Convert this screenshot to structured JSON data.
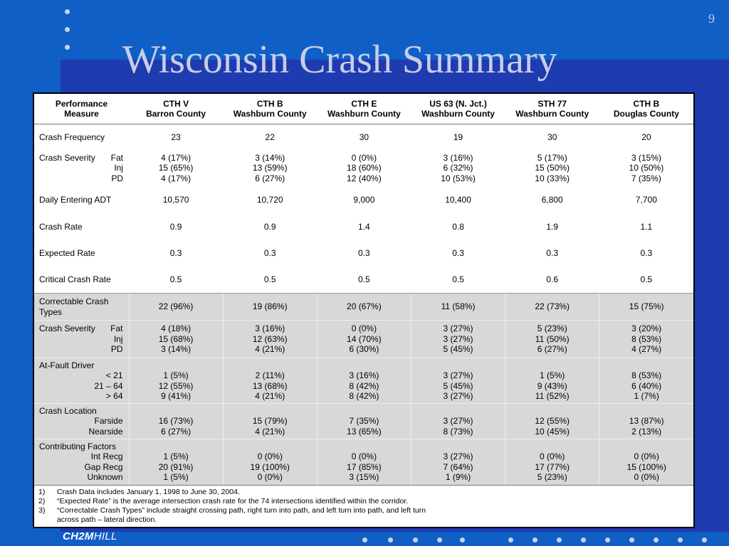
{
  "page_number": "9",
  "title": "Wisconsin Crash Summary",
  "logo": {
    "bold": "CH2M",
    "regular": "HILL"
  },
  "header": {
    "measure": [
      "Performance",
      "Measure"
    ],
    "columns": [
      [
        "CTH V",
        "Barron County"
      ],
      [
        "CTH B",
        "Washburn County"
      ],
      [
        "CTH E",
        "Washburn County"
      ],
      [
        "US 63 (N. Jct.)",
        "Washburn County"
      ],
      [
        "STH 77",
        "Washburn County"
      ],
      [
        "CTH B",
        "Douglas County"
      ]
    ]
  },
  "rows": {
    "crash_frequency": {
      "label": "Crash Frequency",
      "values": [
        "23",
        "22",
        "30",
        "19",
        "30",
        "20"
      ]
    },
    "crash_severity": {
      "label": "Crash Severity",
      "sub": [
        "Fat",
        "Inj",
        "PD"
      ],
      "fat": [
        "4 (17%)",
        "3 (14%)",
        "0 (0%)",
        "3 (16%)",
        "5 (17%)",
        "3 (15%)"
      ],
      "inj": [
        "15 (65%)",
        "13 (59%)",
        "18 (60%)",
        "6 (32%)",
        "15 (50%)",
        "10 (50%)"
      ],
      "pd": [
        "4 (17%)",
        "6 (27%)",
        "12 (40%)",
        "10 (53%)",
        "10 (33%)",
        "7 (35%)"
      ]
    },
    "daily_adt": {
      "label": "Daily Entering ADT",
      "values": [
        "10,570",
        "10,720",
        "9,000",
        "10,400",
        "6,800",
        "7,700"
      ]
    },
    "crash_rate": {
      "label": "Crash Rate",
      "values": [
        "0.9",
        "0.9",
        "1.4",
        "0.8",
        "1.9",
        "1.1"
      ]
    },
    "expected_rate": {
      "label": "Expected Rate",
      "values": [
        "0.3",
        "0.3",
        "0.3",
        "0.3",
        "0.3",
        "0.3"
      ]
    },
    "critical_rate": {
      "label": "Critical Crash Rate",
      "values": [
        "0.5",
        "0.5",
        "0.5",
        "0.5",
        "0.6",
        "0.5"
      ]
    },
    "correctable": {
      "label": "Correctable Crash Types",
      "values": [
        "22 (96%)",
        "19 (86%)",
        "20 (67%)",
        "11 (58%)",
        "22 (73%)",
        "15 (75%)"
      ]
    },
    "correctable_severity": {
      "label": "Crash Severity",
      "sub": [
        "Fat",
        "Inj",
        "PD"
      ],
      "fat": [
        "4 (18%)",
        "3 (16%)",
        "0 (0%)",
        "3 (27%)",
        "5 (23%)",
        "3 (20%)"
      ],
      "inj": [
        "15 (68%)",
        "12 (63%)",
        "14 (70%)",
        "3 (27%)",
        "11 (50%)",
        "8 (53%)"
      ],
      "pd": [
        "3 (14%)",
        "4 (21%)",
        "6 (30%)",
        "5 (45%)",
        "6 (27%)",
        "4 (27%)"
      ]
    },
    "at_fault": {
      "label": "At-Fault Driver",
      "sub": [
        "< 21",
        "21 – 64",
        "> 64"
      ],
      "a": [
        "1 (5%)",
        "2 (11%)",
        "3 (16%)",
        "3 (27%)",
        "1 (5%)",
        "8 (53%)"
      ],
      "b": [
        "12 (55%)",
        "13 (68%)",
        "8 (42%)",
        "5 (45%)",
        "9 (43%)",
        "6 (40%)"
      ],
      "c": [
        "9 (41%)",
        "4 (21%)",
        "8 (42%)",
        "3 (27%)",
        "11 (52%)",
        "1 (7%)"
      ]
    },
    "location": {
      "label": "Crash Location",
      "sub": [
        "Farside",
        "Nearside"
      ],
      "a": [
        "16 (73%)",
        "15 (79%)",
        "7 (35%)",
        "3 (27%)",
        "12 (55%)",
        "13 (87%)"
      ],
      "b": [
        "6 (27%)",
        "4 (21%)",
        "13 (65%)",
        "8 (73%)",
        "10 (45%)",
        "2 (13%)"
      ]
    },
    "factors": {
      "label": "Contributing Factors",
      "sub": [
        "Int Recg",
        "Gap Recg",
        "Unknown"
      ],
      "a": [
        "1 (5%)",
        "0 (0%)",
        "0 (0%)",
        "3 (27%)",
        "0 (0%)",
        "0 (0%)"
      ],
      "b": [
        "20 (91%)",
        "19 (100%)",
        "17 (85%)",
        "7 (64%)",
        "17 (77%)",
        "15 (100%)"
      ],
      "c": [
        "1 (5%)",
        "0 (0%)",
        "3 (15%)",
        "1 (9%)",
        "5 (23%)",
        "0 (0%)"
      ]
    }
  },
  "notes": [
    {
      "n": "1)",
      "text": "Crash Data includes January 1, 1998 to June 30, 2004."
    },
    {
      "n": "2)",
      "text": "“Expected Rate” is the average intersection crash rate for the 74 intersections identified within the corridor."
    },
    {
      "n": "3)",
      "text": "“Correctable Crash Types” include straight crossing path, right turn into path, and left turn into path, and left turn"
    },
    {
      "n": "",
      "text": "across path – lateral direction."
    }
  ]
}
